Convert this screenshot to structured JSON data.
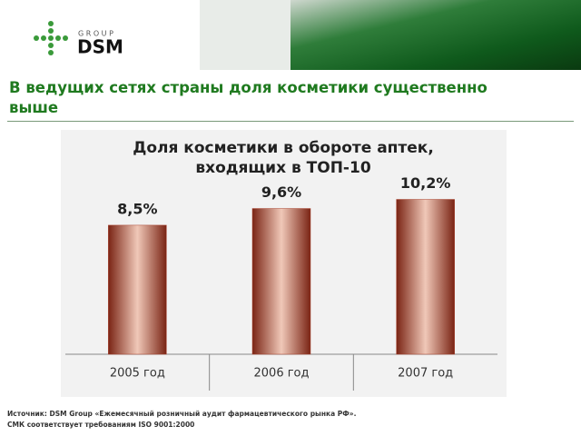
{
  "header": {
    "logo": "DSM",
    "logo_sub": "G R O U P"
  },
  "heading": "В ведущих сетях страны доля косметики существенно выше",
  "chart_data": {
    "type": "bar",
    "title": "Доля косметики в обороте аптек, входящих в ТОП-10",
    "categories": [
      "2005 год",
      "2006 год",
      "2007 год"
    ],
    "values": [
      8.5,
      9.6,
      10.2
    ],
    "value_labels": [
      "8,5%",
      "9,6%",
      "10,2%"
    ],
    "color": "#a8402c",
    "ylim": [
      0,
      14
    ]
  },
  "footer": [
    "Источник: DSM Group «Ежемесячный розничный аудит фармацевтического рынка РФ».",
    "СМК соответствует требованиям ISO 9001:2000"
  ]
}
